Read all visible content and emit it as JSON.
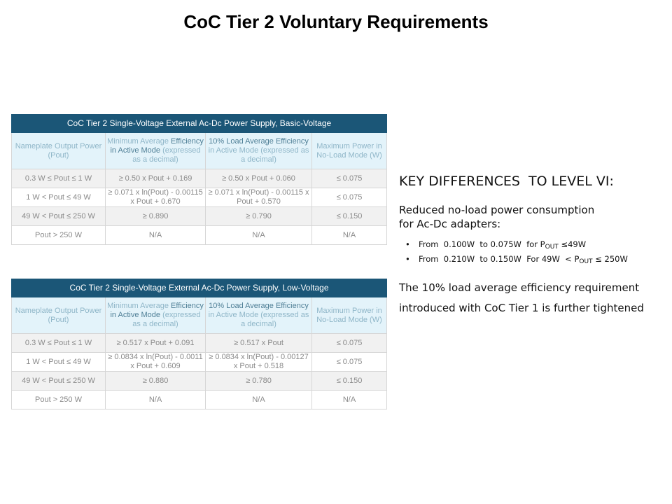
{
  "title": "CoC Tier 2 Voluntary Requirements",
  "tables": [
    {
      "caption": "CoC Tier 2 Single-Voltage External Ac-Dc Power Supply, Basic-Voltage",
      "headers": [
        {
          "pre": "Nameplate Output Power (Pout)",
          "em": "",
          "post": ""
        },
        {
          "pre": "Minimum Average ",
          "em": "Efficiency in Active Mode",
          "post": " (expressed as a decimal)"
        },
        {
          "pre": "",
          "em": "10% Load Average Efficiency",
          "post": " in Active Mode (expressed as a decimal)"
        },
        {
          "pre": "Maximum Power in No-Load Mode (W)",
          "em": "",
          "post": ""
        }
      ],
      "rows": [
        [
          "0.3 W ≤ Pout ≤ 1 W",
          "≥ 0.50 x Pout + 0.169",
          "≥ 0.50 x Pout + 0.060",
          "≤ 0.075"
        ],
        [
          "1 W < Pout ≤ 49 W",
          "≥ 0.071 x ln(Pout) - 0.00115 x Pout + 0.670",
          "≥ 0.071 x ln(Pout) - 0.00115 x Pout + 0.570",
          "≤ 0.075"
        ],
        [
          "49 W < Pout ≤ 250 W",
          "≥ 0.890",
          "≥ 0.790",
          "≤ 0.150"
        ],
        [
          "Pout > 250 W",
          "N/A",
          "N/A",
          "N/A"
        ]
      ]
    },
    {
      "caption": "CoC Tier 2 Single-Voltage External Ac-Dc Power Supply, Low-Voltage",
      "headers": [
        {
          "pre": "Nameplate Output Power (Pout)",
          "em": "",
          "post": ""
        },
        {
          "pre": "Minimum Average ",
          "em": "Efficiency in Active Mode",
          "post": " (expressed as a decimal)"
        },
        {
          "pre": "",
          "em": "10% Load Average Efficiency",
          "post": " in Active Mode (expressed as a decimal)"
        },
        {
          "pre": "Maximum Power in No-Load Mode (W)",
          "em": "",
          "post": ""
        }
      ],
      "rows": [
        [
          "0.3 W ≤ Pout ≤ 1 W",
          "≥ 0.517 x Pout + 0.091",
          "≥ 0.517 x Pout",
          "≤ 0.075"
        ],
        [
          "1 W < Pout ≤ 49 W",
          "≥ 0.0834 x ln(Pout) - 0.0011 x Pout + 0.609",
          "≥ 0.0834 x ln(Pout) - 0.00127 x Pout + 0.518",
          "≤ 0.075"
        ],
        [
          "49 W < Pout ≤ 250 W",
          "≥ 0.880",
          "≥ 0.780",
          "≤ 0.150"
        ],
        [
          "Pout > 250 W",
          "N/A",
          "N/A",
          "N/A"
        ]
      ]
    }
  ],
  "key": {
    "heading": "KEY DIFFERENCES  TO LEVEL VI:",
    "para1_line1": "Reduced no-load power consumption",
    "para1_line2": "for Ac-Dc adapters:",
    "bullets": [
      {
        "pre": "From  0.100W  to 0.075W  for P",
        "sub": "OUT",
        "post": " ≤49W"
      },
      {
        "pre": "From  0.210W  to 0.150W  For 49W  < P",
        "sub": "OUT",
        "post": " ≤ 250W"
      }
    ],
    "bullet_glyph": "•",
    "para2_line1": "The 10% load average efficiency requirement",
    "para2_line2": "introduced with CoC Tier 1 is further tightened"
  }
}
